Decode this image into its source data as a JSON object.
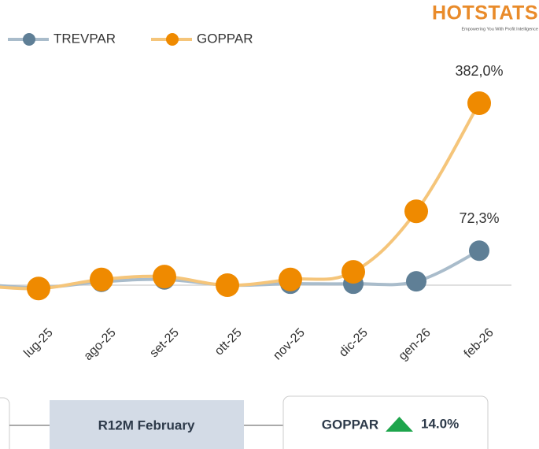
{
  "logo": {
    "name": "HOTSTATS",
    "tagline": "Empowering You With Profit Intelligence"
  },
  "chart_data": {
    "type": "line",
    "categories": [
      null,
      "lug-25",
      "ago-25",
      "set-25",
      "ott-25",
      "nov-25",
      "dic-25",
      "gen-26",
      "feb-26"
    ],
    "series": [
      {
        "name": "TREVPAR",
        "color": "#5f7f96",
        "line_color": "#a9bccb",
        "values": [
          3,
          -5,
          7,
          12,
          0,
          3,
          3,
          8,
          72.3
        ],
        "value_labels": [
          null,
          null,
          null,
          null,
          null,
          null,
          null,
          null,
          "72,3%"
        ]
      },
      {
        "name": "GOPPAR",
        "color": "#ef8a00",
        "line_color": "#f5c57a",
        "values": [
          0,
          -7,
          12,
          18,
          0,
          12,
          28,
          155,
          382
        ],
        "value_labels": [
          null,
          null,
          null,
          null,
          null,
          null,
          null,
          null,
          "382,0%"
        ]
      }
    ]
  },
  "footer": {
    "period": "R12M February",
    "kpi": {
      "name": "GOPPAR",
      "change": "14.0%"
    }
  }
}
